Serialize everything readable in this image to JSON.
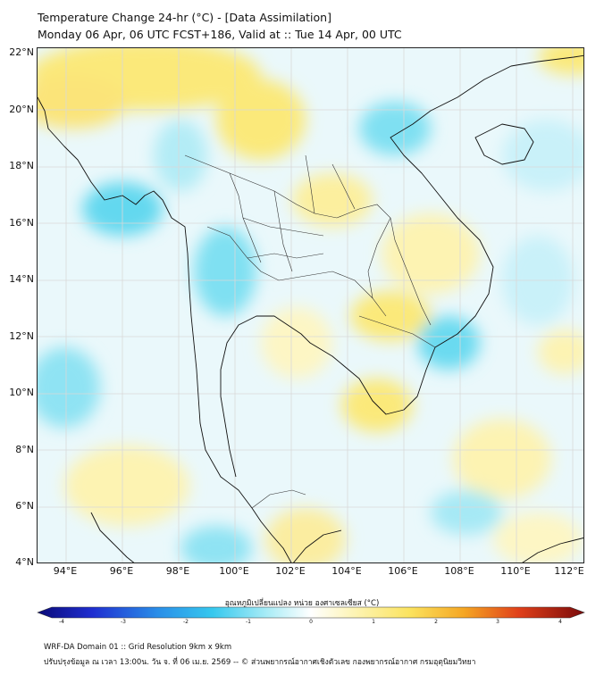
{
  "title": {
    "line1": "Temperature Change 24-hr (°C) - [Data Assimilation]",
    "line2": "Monday 06 Apr, 06 UTC FCST+186, Valid at :: Tue 14 Apr, 00 UTC"
  },
  "map": {
    "lat_labels": [
      "22°N",
      "20°N",
      "18°N",
      "16°N",
      "14°N",
      "12°N",
      "10°N",
      "8°N",
      "6°N",
      "4°N"
    ],
    "lon_labels": [
      "94°E",
      "96°E",
      "98°E",
      "100°E",
      "102°E",
      "104°E",
      "106°E",
      "108°E",
      "110°E",
      "112°E"
    ],
    "lat_range": [
      4,
      22
    ],
    "lon_range": [
      93,
      112.8
    ],
    "colors": {
      "warm_yellow": "#fbe97a",
      "pale_yellow": "#fdf6c4",
      "cool_cyan": "#63d8ef",
      "pale_cyan": "#c9f1f9",
      "coastline": "#111111",
      "border": "#222222",
      "grid": "#d9d9d9"
    }
  },
  "colorbar": {
    "label": "อุณหภูมิเปลี่ยนแปลง หน่วย องศาเซลเซียส (°C)",
    "ticks": [
      "-4",
      "-3",
      "-2",
      "-1",
      "0",
      "1",
      "2",
      "3",
      "4"
    ],
    "min": -4,
    "max": 4
  },
  "footer": {
    "line1": "WRF-DA Domain 01 :: Grid Resolution 9km x 9km",
    "line2": "ปรับปรุงข้อมูล ณ เวลา 13:00น. วัน จ. ที่ 06 เม.ย. 2569 -- © ส่วนพยากรณ์อากาศเชิงตัวเลข กองพยากรณ์อากาศ กรมอุตุนิยมวิทยา"
  }
}
